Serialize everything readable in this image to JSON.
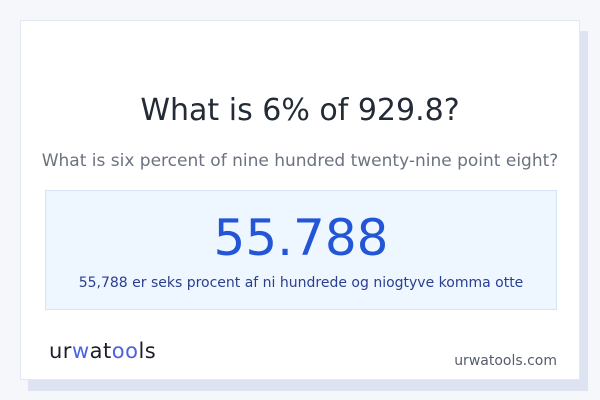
{
  "question": {
    "title": "What is 6% of 929.8?",
    "subtitle": "What is six percent of nine hundred twenty-nine point eight?"
  },
  "result": {
    "value": "55.788",
    "words": "55,788 er seks procent af ni hundrede og niogtyve komma otte"
  },
  "footer": {
    "logo_text": "urwatools",
    "site": "urwatools.com"
  },
  "colors": {
    "accent": "#2356d6",
    "result_bg": "#eef6ff",
    "logo_accent": "#4a63e0"
  }
}
